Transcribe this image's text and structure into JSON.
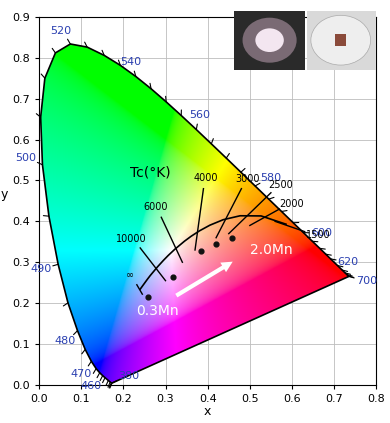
{
  "chart_data": {
    "type": "scatter",
    "xlabel": "x",
    "ylabel": "y",
    "xlim": [
      0.0,
      0.8
    ],
    "ylim": [
      0.0,
      0.9
    ],
    "xticks": [
      0.0,
      0.1,
      0.2,
      0.3,
      0.4,
      0.5,
      0.6,
      0.7,
      0.8
    ],
    "yticks": [
      0.0,
      0.1,
      0.2,
      0.3,
      0.4,
      0.5,
      0.6,
      0.7,
      0.8,
      0.9
    ],
    "grid": true,
    "x": [
      0.258,
      0.317,
      0.383,
      0.42,
      0.458
    ],
    "y": [
      0.216,
      0.263,
      0.328,
      0.344,
      0.36
    ],
    "color": "#111111",
    "marker": "o",
    "spectral_locus": {
      "wavelengths": [
        380,
        400,
        420,
        430,
        440,
        450,
        455,
        460,
        465,
        470,
        475,
        480,
        485,
        490,
        495,
        500,
        505,
        510,
        515,
        520,
        525,
        530,
        535,
        540,
        545,
        550,
        555,
        560,
        565,
        570,
        575,
        580,
        585,
        590,
        595,
        600,
        605,
        610,
        615,
        620,
        630,
        640,
        650,
        660,
        680,
        700
      ],
      "x": [
        0.1741,
        0.1733,
        0.1714,
        0.1689,
        0.1644,
        0.1566,
        0.151,
        0.144,
        0.1355,
        0.1241,
        0.1096,
        0.0913,
        0.0687,
        0.0454,
        0.0235,
        0.0082,
        0.0039,
        0.0139,
        0.0389,
        0.0743,
        0.1142,
        0.1547,
        0.1929,
        0.2296,
        0.2658,
        0.3016,
        0.3373,
        0.3731,
        0.4087,
        0.4441,
        0.4788,
        0.5125,
        0.5448,
        0.5752,
        0.6029,
        0.627,
        0.6482,
        0.6658,
        0.6801,
        0.6915,
        0.7079,
        0.719,
        0.726,
        0.73,
        0.7334,
        0.7347
      ],
      "y": [
        0.005,
        0.0048,
        0.0051,
        0.0069,
        0.0109,
        0.0177,
        0.0227,
        0.0297,
        0.0399,
        0.0578,
        0.0868,
        0.1327,
        0.2007,
        0.295,
        0.4127,
        0.5384,
        0.6548,
        0.7502,
        0.812,
        0.8338,
        0.8262,
        0.8059,
        0.7816,
        0.7543,
        0.7243,
        0.6923,
        0.6589,
        0.6245,
        0.5896,
        0.5547,
        0.5202,
        0.4866,
        0.4544,
        0.4242,
        0.3965,
        0.3725,
        0.3514,
        0.334,
        0.3197,
        0.3083,
        0.292,
        0.2809,
        0.274,
        0.27,
        0.2666,
        0.2653
      ],
      "labeled": [
        380,
        460,
        470,
        480,
        490,
        500,
        520,
        540,
        560,
        580,
        600,
        620,
        700
      ],
      "color": "#2a3fb0"
    },
    "planckian_locus": {
      "x": [
        0.5857,
        0.5267,
        0.477,
        0.4369,
        0.4053,
        0.3805,
        0.3608,
        0.3451,
        0.3221,
        0.3064,
        0.2952,
        0.2807,
        0.2637,
        0.2565,
        0.2399
      ],
      "y": [
        0.3931,
        0.4133,
        0.4137,
        0.4041,
        0.3907,
        0.3768,
        0.3636,
        0.3516,
        0.3318,
        0.3166,
        0.3048,
        0.2884,
        0.2674,
        0.2577,
        0.2341
      ],
      "color": "#000000"
    },
    "isotherms": [
      {
        "label": "∞",
        "x": [
          0.245,
          0.232
        ],
        "y": [
          0.222,
          0.245
        ]
      },
      {
        "label": "10000",
        "x": [
          0.3,
          0.24
        ],
        "y": [
          0.255,
          0.335
        ]
      },
      {
        "label": "6000",
        "x": [
          0.34,
          0.29
        ],
        "y": [
          0.3,
          0.41
        ]
      },
      {
        "label": "4000",
        "x": [
          0.37,
          0.39
        ],
        "y": [
          0.33,
          0.48
        ]
      },
      {
        "label": "3000",
        "x": [
          0.42,
          0.48
        ],
        "y": [
          0.36,
          0.48
        ]
      },
      {
        "label": "2500",
        "x": [
          0.45,
          0.55
        ],
        "y": [
          0.37,
          0.47
        ]
      },
      {
        "label": "2000",
        "x": [
          0.5,
          0.57
        ],
        "y": [
          0.39,
          0.43
        ]
      },
      {
        "label": "1500",
        "x": [
          0.56,
          0.63
        ],
        "y": [
          0.4,
          0.375
        ]
      }
    ],
    "annotations": [
      {
        "text": "Tc(°K)",
        "x": 0.265,
        "y": 0.52,
        "color": "#000000"
      },
      {
        "text": "0.3Mn",
        "x": 0.28,
        "y": 0.18,
        "color": "#ffffff"
      },
      {
        "text": "2.0Mn",
        "x": 0.55,
        "y": 0.33,
        "color": "#ffffff"
      }
    ],
    "arrow": {
      "x": [
        0.32,
        0.465
      ],
      "y": [
        0.215,
        0.305
      ],
      "color": "#ffffff"
    }
  }
}
